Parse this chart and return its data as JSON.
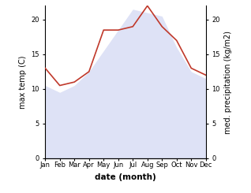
{
  "months": [
    "Jan",
    "Feb",
    "Mar",
    "Apr",
    "May",
    "Jun",
    "Jul",
    "Aug",
    "Sep",
    "Oct",
    "Nov",
    "Dec"
  ],
  "max_temp": [
    10.5,
    9.5,
    10.5,
    12.5,
    15.5,
    18.5,
    21.5,
    21.0,
    20.5,
    16.0,
    12.5,
    11.5
  ],
  "med_precip": [
    13.0,
    10.5,
    11.0,
    12.5,
    18.5,
    18.5,
    19.0,
    22.0,
    19.0,
    17.0,
    13.0,
    12.0
  ],
  "temp_fill_color": "#c8cff0",
  "precip_color": "#c0392b",
  "temp_ylim": [
    0,
    22
  ],
  "precip_ylim": [
    0,
    22
  ],
  "temp_yticks": [
    0,
    5,
    10,
    15,
    20
  ],
  "precip_yticks": [
    0,
    5,
    10,
    15,
    20
  ],
  "ylabel_left": "max temp (C)",
  "ylabel_right": "med. precipitation (kg/m2)",
  "xlabel": "date (month)",
  "background_color": "#ffffff",
  "fill_alpha": 0.6,
  "tick_fontsize": 6,
  "label_fontsize": 7,
  "xlabel_fontsize": 7.5
}
